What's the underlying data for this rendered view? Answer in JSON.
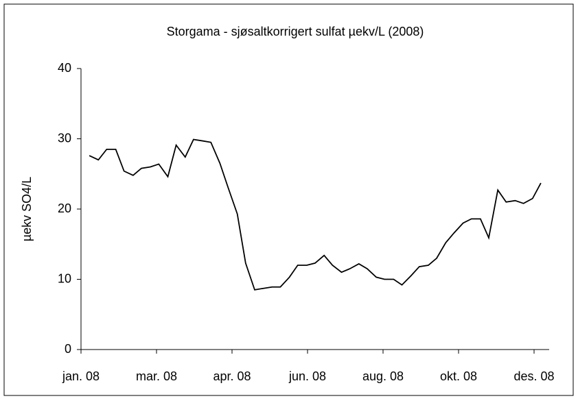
{
  "chart_data": {
    "type": "line",
    "title": "Storgama - sjøsaltkorrigert sulfat µekv/L (2008)",
    "y_label": "µekv SO4/L",
    "x": [
      0.11,
      0.23,
      0.34,
      0.46,
      0.57,
      0.69,
      0.8,
      0.92,
      1.03,
      1.15,
      1.26,
      1.38,
      1.49,
      1.61,
      1.72,
      1.84,
      1.95,
      2.07,
      2.18,
      2.3,
      2.41,
      2.53,
      2.64,
      2.76,
      2.87,
      2.99,
      3.1,
      3.22,
      3.33,
      3.45,
      3.56,
      3.68,
      3.79,
      3.91,
      4.02,
      4.14,
      4.25,
      4.37,
      4.48,
      4.6,
      4.71,
      4.83,
      4.94,
      5.06,
      5.17,
      5.29,
      5.4,
      5.52,
      5.63,
      5.75,
      5.86,
      5.98,
      6.09
    ],
    "values": [
      27.6,
      27.0,
      28.5,
      28.5,
      25.4,
      24.8,
      25.8,
      26.0,
      26.4,
      24.6,
      29.1,
      27.4,
      29.9,
      29.7,
      29.5,
      26.5,
      23.0,
      19.3,
      12.3,
      8.5,
      8.7,
      8.9,
      8.9,
      10.3,
      12.0,
      12.0,
      12.3,
      13.4,
      12.0,
      11.0,
      11.5,
      12.2,
      11.5,
      10.3,
      10.0,
      10.0,
      9.2,
      10.5,
      11.8,
      12.0,
      13.0,
      15.2,
      16.6,
      18.0,
      18.6,
      18.6,
      15.9,
      22.7,
      21.0,
      21.2,
      20.8,
      21.5,
      23.7
    ],
    "color": "#000000",
    "xlim": [
      0,
      6.2
    ],
    "xticks": [
      {
        "value": 0,
        "label": "jan. 08"
      },
      {
        "value": 1,
        "label": "mar. 08"
      },
      {
        "value": 2,
        "label": "apr. 08"
      },
      {
        "value": 3,
        "label": "jun. 08"
      },
      {
        "value": 4,
        "label": "aug. 08"
      },
      {
        "value": 5,
        "label": "okt. 08"
      },
      {
        "value": 6,
        "label": "des. 08"
      }
    ],
    "ylim": [
      0,
      40
    ],
    "yticks": [
      0,
      10,
      20,
      30,
      40
    ],
    "grid": false
  }
}
